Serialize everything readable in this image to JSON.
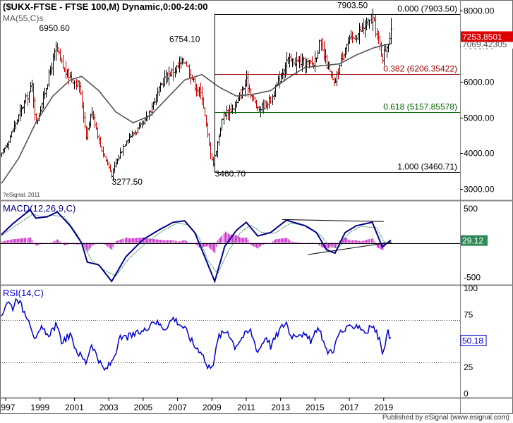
{
  "header": {
    "title": "($UKX-FTSE - FTSE 100,M) Dynamic,0:00-24:00",
    "ma_label": "MA(55,C)s",
    "watermark": "?eSignal, 2011"
  },
  "footer": {
    "published_by": "Published by eSignal (www.esignal.com)"
  },
  "colors": {
    "up_bar": "#000000",
    "down_bar": "#cc0000",
    "ma": "#555555",
    "macd": "#00008b",
    "signal": "#2e8b57",
    "hist": "#cc33cc",
    "rsi": "#0000cc",
    "fib_red": "#990000",
    "fib_green": "#006600",
    "price_badge": "#dd0000"
  },
  "chart_data": [
    {
      "type": "ohlc",
      "panel": "price",
      "series_label": "$UKX-FTSE - FTSE 100,M",
      "x_labels": [
        "1997",
        "1999",
        "2001",
        "2003",
        "2005",
        "2007",
        "2009",
        "2011",
        "2013",
        "2015",
        "2017",
        "2019"
      ],
      "y_ticks": [
        3000,
        4000,
        5000,
        6000,
        7000,
        8000
      ],
      "y_tick_labels": [
        "3000.00",
        "4000.00",
        "5000.00",
        "6000.00",
        "7000.00",
        "8000.00"
      ],
      "ylim": [
        2700,
        8250
      ],
      "anchors": [
        [
          "1996-10",
          3950
        ],
        [
          "1997-06",
          4650
        ],
        [
          "1998-07",
          5900
        ],
        [
          "1998-10",
          4800
        ],
        [
          "1999-12",
          6930
        ],
        [
          "2000-06",
          6300
        ],
        [
          "2001-04",
          5900
        ],
        [
          "2001-09",
          4500
        ],
        [
          "2002-01",
          5200
        ],
        [
          "2002-07",
          4200
        ],
        [
          "2003-03",
          3400
        ],
        [
          "2004-01",
          4400
        ],
        [
          "2005-01",
          4800
        ],
        [
          "2006-04",
          6100
        ],
        [
          "2007-06",
          6600
        ],
        [
          "2008-01",
          5900
        ],
        [
          "2008-06",
          5600
        ],
        [
          "2008-11",
          4200
        ],
        [
          "2009-02",
          3700
        ],
        [
          "2009-09",
          5100
        ],
        [
          "2010-05",
          5300
        ],
        [
          "2011-01",
          6000
        ],
        [
          "2011-09",
          5200
        ],
        [
          "2012-06",
          5500
        ],
        [
          "2013-05",
          6600
        ],
        [
          "2014-12",
          6500
        ],
        [
          "2015-04",
          7050
        ],
        [
          "2016-02",
          5900
        ],
        [
          "2016-10",
          7000
        ],
        [
          "2018-05",
          7750
        ],
        [
          "2018-12",
          6700
        ],
        [
          "2019-06",
          7350
        ]
      ],
      "labeled_points": [
        {
          "label": "6950.60",
          "date": "1999-12",
          "value": 6950.6
        },
        {
          "label": "3277.50",
          "date": "2003-03",
          "value": 3277.5
        },
        {
          "label": "6754.10",
          "date": "2007-06",
          "value": 6754.1
        },
        {
          "label": "3460.70",
          "date": "2009-03",
          "value": 3460.7
        },
        {
          "label": "7903.50",
          "date": "2018-05",
          "value": 7903.5
        }
      ],
      "fib_levels": [
        {
          "ratio": "0.000",
          "value": 7903.5,
          "label": "0.000 (7903.50)",
          "color": "#000000"
        },
        {
          "ratio": "0.382",
          "value": 6206.35422,
          "label": "0.382 (6206.35422)",
          "color": "#990000"
        },
        {
          "ratio": "0.618",
          "value": 5157.85578,
          "label": "0.618 (5157.85578)",
          "color": "#006600"
        },
        {
          "ratio": "1.000",
          "value": 3460.71,
          "label": "1.000 (3460.71)",
          "color": "#000000"
        }
      ],
      "fib_start": "2009-03",
      "last_price": {
        "label": "7253.8501",
        "value": 7253.8501
      },
      "ma_last": {
        "label": "7069.42305",
        "value": 7069.42305
      },
      "ma_label": "MA(55,C)s",
      "ma_anchors": [
        [
          "1996-10",
          3150
        ],
        [
          "1997-10",
          3850
        ],
        [
          "1998-10",
          4850
        ],
        [
          "1999-10",
          5600
        ],
        [
          "2000-10",
          6050
        ],
        [
          "2001-06",
          6150
        ],
        [
          "2002-06",
          5750
        ],
        [
          "2003-06",
          5150
        ],
        [
          "2004-06",
          4850
        ],
        [
          "2005-06",
          5050
        ],
        [
          "2006-06",
          5550
        ],
        [
          "2007-06",
          6050
        ],
        [
          "2008-06",
          6200
        ],
        [
          "2009-06",
          5850
        ],
        [
          "2010-06",
          5600
        ],
        [
          "2011-06",
          5650
        ],
        [
          "2012-06",
          5750
        ],
        [
          "2013-06",
          6100
        ],
        [
          "2014-06",
          6400
        ],
        [
          "2015-06",
          6450
        ],
        [
          "2016-06",
          6500
        ],
        [
          "2017-06",
          6750
        ],
        [
          "2018-06",
          6950
        ],
        [
          "2019-06",
          7069
        ]
      ]
    },
    {
      "type": "line",
      "panel": "macd",
      "title": "MACD(12,26,9,C)",
      "y_tick_labels": [
        "500",
        "-500"
      ],
      "y_ticks": [
        500,
        -500
      ],
      "ylim": [
        -600,
        600
      ],
      "last_value": {
        "label": "29.12",
        "value": 29.12
      },
      "macd_anchors": [
        [
          "1996-10",
          120
        ],
        [
          "1997-06",
          280
        ],
        [
          "1998-06",
          480
        ],
        [
          "1998-10",
          360
        ],
        [
          "1999-06",
          380
        ],
        [
          "2000-01",
          450
        ],
        [
          "2000-10",
          250
        ],
        [
          "2001-06",
          0
        ],
        [
          "2001-10",
          -280
        ],
        [
          "2002-06",
          -320
        ],
        [
          "2003-03",
          -560
        ],
        [
          "2004-01",
          -200
        ],
        [
          "2005-01",
          50
        ],
        [
          "2006-01",
          200
        ],
        [
          "2006-10",
          300
        ],
        [
          "2007-06",
          320
        ],
        [
          "2008-01",
          150
        ],
        [
          "2008-06",
          -100
        ],
        [
          "2009-03",
          -560
        ],
        [
          "2009-10",
          -50
        ],
        [
          "2010-06",
          180
        ],
        [
          "2011-01",
          300
        ],
        [
          "2011-09",
          100
        ],
        [
          "2012-06",
          150
        ],
        [
          "2013-05",
          330
        ],
        [
          "2014-06",
          250
        ],
        [
          "2015-02",
          150
        ],
        [
          "2015-09",
          -100
        ],
        [
          "2016-03",
          -150
        ],
        [
          "2016-10",
          150
        ],
        [
          "2017-06",
          250
        ],
        [
          "2018-05",
          300
        ],
        [
          "2018-12",
          -60
        ],
        [
          "2019-06",
          40
        ]
      ],
      "signal_anchors": [
        [
          "1996-10",
          100
        ],
        [
          "1997-08",
          250
        ],
        [
          "1998-08",
          420
        ],
        [
          "1999-02",
          380
        ],
        [
          "1999-10",
          400
        ],
        [
          "2000-06",
          380
        ],
        [
          "2001-03",
          120
        ],
        [
          "2002-01",
          -250
        ],
        [
          "2002-10",
          -400
        ],
        [
          "2003-06",
          -480
        ],
        [
          "2004-03",
          -230
        ],
        [
          "2005-03",
          0
        ],
        [
          "2006-03",
          180
        ],
        [
          "2007-01",
          290
        ],
        [
          "2007-09",
          260
        ],
        [
          "2008-04",
          80
        ],
        [
          "2008-10",
          -250
        ],
        [
          "2009-05",
          -450
        ],
        [
          "2010-01",
          -100
        ],
        [
          "2010-09",
          150
        ],
        [
          "2011-04",
          260
        ],
        [
          "2011-12",
          150
        ],
        [
          "2012-09",
          140
        ],
        [
          "2013-08",
          290
        ],
        [
          "2014-08",
          240
        ],
        [
          "2015-05",
          110
        ],
        [
          "2015-12",
          -70
        ],
        [
          "2016-06",
          -60
        ],
        [
          "2017-01",
          150
        ],
        [
          "2017-09",
          240
        ],
        [
          "2018-08",
          220
        ],
        [
          "2019-02",
          -20
        ],
        [
          "2019-06",
          20
        ]
      ],
      "trendlines": [
        {
          "from": [
            "2013-02",
            340
          ],
          "to": [
            "2019-01",
            310
          ]
        },
        {
          "from": [
            "2014-08",
            -170
          ],
          "to": [
            "2019-06",
            10
          ]
        }
      ]
    },
    {
      "type": "line",
      "panel": "rsi",
      "title": "RSI(14,C)",
      "y_tick_labels": [
        "100",
        "75",
        "50",
        "25",
        "0"
      ],
      "y_ticks": [
        100,
        75,
        50,
        25,
        0
      ],
      "ylim": [
        -3,
        102
      ],
      "last_value": {
        "label": "50.18",
        "value": 50.18
      },
      "reference_lines": [
        70,
        30
      ],
      "anchors": [
        [
          "1996-10",
          75
        ],
        [
          "1997-02",
          88
        ],
        [
          "1997-06",
          82
        ],
        [
          "1997-09",
          92
        ],
        [
          "1998-01",
          80
        ],
        [
          "1998-05",
          72
        ],
        [
          "1998-10",
          50
        ],
        [
          "1999-02",
          62
        ],
        [
          "1999-06",
          55
        ],
        [
          "1999-12",
          65
        ],
        [
          "2000-04",
          50
        ],
        [
          "2000-10",
          55
        ],
        [
          "2001-03",
          40
        ],
        [
          "2001-09",
          30
        ],
        [
          "2002-01",
          48
        ],
        [
          "2002-07",
          28
        ],
        [
          "2002-10",
          22
        ],
        [
          "2003-03",
          30
        ],
        [
          "2003-09",
          52
        ],
        [
          "2004-05",
          55
        ],
        [
          "2005-02",
          60
        ],
        [
          "2005-08",
          70
        ],
        [
          "2006-04",
          62
        ],
        [
          "2006-10",
          72
        ],
        [
          "2007-06",
          62
        ],
        [
          "2008-01",
          45
        ],
        [
          "2008-06",
          40
        ],
        [
          "2008-10",
          24
        ],
        [
          "2009-02",
          30
        ],
        [
          "2009-06",
          55
        ],
        [
          "2009-12",
          60
        ],
        [
          "2010-05",
          45
        ],
        [
          "2010-11",
          55
        ],
        [
          "2011-04",
          60
        ],
        [
          "2011-09",
          40
        ],
        [
          "2012-03",
          55
        ],
        [
          "2012-06",
          45
        ],
        [
          "2013-01",
          62
        ],
        [
          "2013-05",
          68
        ],
        [
          "2013-08",
          55
        ],
        [
          "2014-03",
          58
        ],
        [
          "2014-10",
          50
        ],
        [
          "2015-04",
          63
        ],
        [
          "2015-09",
          40
        ],
        [
          "2016-02",
          42
        ],
        [
          "2016-06",
          58
        ],
        [
          "2017-01",
          62
        ],
        [
          "2017-06",
          66
        ],
        [
          "2018-01",
          58
        ],
        [
          "2018-05",
          65
        ],
        [
          "2018-09",
          55
        ],
        [
          "2018-12",
          40
        ],
        [
          "2019-04",
          58
        ],
        [
          "2019-06",
          50
        ]
      ]
    }
  ]
}
